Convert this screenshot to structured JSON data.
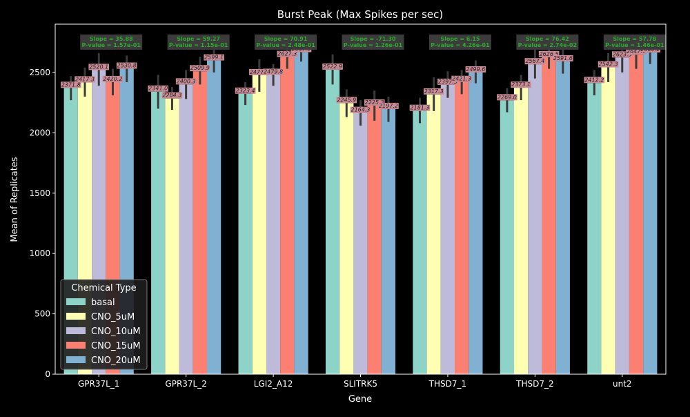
{
  "chart_data": {
    "type": "bar",
    "title": "Burst Peak (Max Spikes per sec)",
    "xlabel": "Gene",
    "ylabel": "Mean of Replicates",
    "ylim": [
      0,
      2900
    ],
    "yticks": [
      0,
      500,
      1000,
      1500,
      2000,
      2500
    ],
    "categories": [
      "GPR37L_1",
      "GPR37L_2",
      "LGI2_A12",
      "SLITRK5",
      "THSD7_1",
      "THSD7_2",
      "unt2"
    ],
    "legend": {
      "title": "Chemical Type",
      "position": "lower-left"
    },
    "series": [
      {
        "name": "basal",
        "color": "#8dd3c7",
        "values": [
          2371.8,
          2341.0,
          2323.4,
          2522.9,
          2181.3,
          2269.0,
          2412.2
        ],
        "labels": [
          "2371.8",
          "2341.0",
          "2323.4",
          "2522.9",
          "2181.3",
          "2269.0",
          "2412.2"
        ],
        "err": [
          [
            2270,
            2470
          ],
          [
            2200,
            2480
          ],
          [
            2230,
            2420
          ],
          [
            2400,
            2650
          ],
          [
            2080,
            2290
          ],
          [
            2170,
            2370
          ],
          [
            2310,
            2520
          ]
        ]
      },
      {
        "name": "CNO_5uM",
        "color": "#ffffb3",
        "values": [
          2417.3,
          2284.3,
          2477.4,
          2245.9,
          2317.3,
          2373.1,
          2542.3
        ],
        "labels": [
          "2417.3",
          "2284.3",
          "2477.4",
          "2245.9",
          "2317.3",
          "2373.1",
          "2542.3"
        ],
        "err": [
          [
            2300,
            2540
          ],
          [
            2190,
            2380
          ],
          [
            2340,
            2610
          ],
          [
            2130,
            2360
          ],
          [
            2180,
            2460
          ],
          [
            2270,
            2480
          ],
          [
            2420,
            2660
          ]
        ]
      },
      {
        "name": "CNO_10uM",
        "color": "#bebada",
        "values": [
          2520.1,
          2400.3,
          2479.8,
          2164.3,
          2397.3,
          2567.4,
          2623.5
        ],
        "labels": [
          "2520.1",
          "2400.3",
          "2479.8",
          "2164.3",
          "2397.3",
          "2567.4",
          "2623.5"
        ],
        "err": [
          [
            2390,
            2660
          ],
          [
            2280,
            2520
          ],
          [
            2390,
            2570
          ],
          [
            2060,
            2270
          ],
          [
            2290,
            2510
          ],
          [
            2450,
            2690
          ],
          [
            2500,
            2750
          ]
        ]
      },
      {
        "name": "CNO_15uM",
        "color": "#fb8072",
        "values": [
          2420.2,
          2509.9,
          2627.3,
          2225.3,
          2421.3,
          2626.5,
          2647.0
        ],
        "labels": [
          "2420.2",
          "2509.9",
          "2627.3",
          "2225.3",
          "2421.3",
          "2626.5",
          "2647.0"
        ],
        "err": [
          [
            2310,
            2530
          ],
          [
            2400,
            2630
          ],
          [
            2530,
            2730
          ],
          [
            2100,
            2350
          ],
          [
            2320,
            2520
          ],
          [
            2530,
            2720
          ],
          [
            2530,
            2760
          ]
        ]
      },
      {
        "name": "CNO_20uM",
        "color": "#80b1d3",
        "values": [
          2530.8,
          2599.1,
          2667.9,
          2197.2,
          2499.6,
          2591.6,
          2665.1
        ],
        "labels": [
          "2530.8",
          "2599.1",
          "2667.9",
          "2197.2",
          "2499.6",
          "2591.6",
          "2665.1"
        ],
        "err": [
          [
            2420,
            2640
          ],
          [
            2500,
            2700
          ],
          [
            2590,
            2750
          ],
          [
            2090,
            2300
          ],
          [
            2410,
            2600
          ],
          [
            2490,
            2700
          ],
          [
            2570,
            2760
          ]
        ]
      }
    ],
    "annotations": [
      {
        "category": "GPR37L_1",
        "lines": [
          "Slope = 35.88",
          "P-value = 1.57e-01"
        ]
      },
      {
        "category": "GPR37L_2",
        "lines": [
          "Slope = 59.27",
          "P-value = 1.15e-01"
        ]
      },
      {
        "category": "LGI2_A12",
        "lines": [
          "Slope = 70.91",
          "P-value = 2.48e-01"
        ]
      },
      {
        "category": "SLITRK5",
        "lines": [
          "Slope = -71.30",
          "P-value = 1.26e-01"
        ]
      },
      {
        "category": "THSD7_1",
        "lines": [
          "Slope = 6.15",
          "P-value = 4.26e-01"
        ]
      },
      {
        "category": "THSD7_2",
        "lines": [
          "Slope = 76.42",
          "P-value = 2.74e-02"
        ]
      },
      {
        "category": "unt2",
        "lines": [
          "Slope = 57.78",
          "P-value = 1.46e-01"
        ]
      }
    ],
    "colors": {
      "background": "#000000",
      "axes": "#ffffff",
      "text": "#ffffff",
      "bar_label_bg": "#c98b96",
      "bar_label_text": "#222222",
      "error_bar": "#3a3a3a",
      "annotation_bg": "#3b3b3b",
      "annotation_text": "#2ea82e",
      "legend_bg": "#1e1e1e"
    }
  }
}
